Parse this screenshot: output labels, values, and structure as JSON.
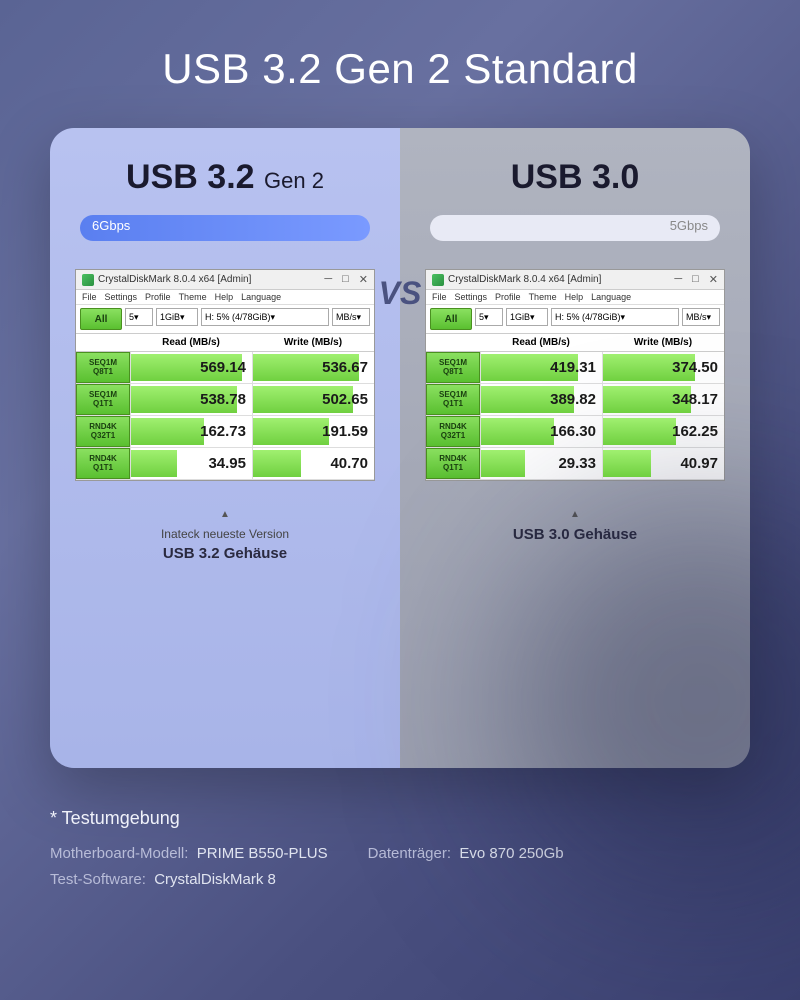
{
  "title": "USB 3.2 Gen 2 Standard",
  "vs_label": "VS",
  "colors": {
    "bg_grad_from": "#5a6494",
    "bg_grad_to": "#3a4070",
    "panel_left": "#a8b4e8",
    "panel_right": "#9ca0b0",
    "pill_left": "#5a7ff0",
    "pill_right": "#e8eaf5",
    "cdm_green": "#70d040"
  },
  "left": {
    "spec": "USB 3.2",
    "spec_sub": "Gen 2",
    "speed": "6Gbps",
    "caption_top": "Inateck neueste Version",
    "caption_main": "USB 3.2 Gehäuse",
    "cdm": {
      "title": "CrystalDiskMark 8.0.4 x64 [Admin]",
      "menu": [
        "File",
        "Settings",
        "Profile",
        "Theme",
        "Help",
        "Language"
      ],
      "all_label": "All",
      "sel_count": "5",
      "sel_size": "1GiB",
      "sel_drive": "H: 5% (4/78GiB)",
      "sel_unit": "MB/s",
      "head_read": "Read (MB/s)",
      "head_write": "Write (MB/s)",
      "rows": [
        {
          "l1": "SEQ1M",
          "l2": "Q8T1",
          "read": "569.14",
          "rbar": 92,
          "write": "536.67",
          "wbar": 88
        },
        {
          "l1": "SEQ1M",
          "l2": "Q1T1",
          "read": "538.78",
          "rbar": 88,
          "write": "502.65",
          "wbar": 83
        },
        {
          "l1": "RND4K",
          "l2": "Q32T1",
          "read": "162.73",
          "rbar": 60,
          "write": "191.59",
          "wbar": 63
        },
        {
          "l1": "RND4K",
          "l2": "Q1T1",
          "read": "34.95",
          "rbar": 38,
          "write": "40.70",
          "wbar": 40
        }
      ]
    }
  },
  "right": {
    "spec": "USB 3.0",
    "spec_sub": "",
    "speed": "5Gbps",
    "caption_top": "",
    "caption_main": "USB 3.0   Gehäuse",
    "cdm": {
      "title": "CrystalDiskMark 8.0.4 x64 [Admin]",
      "menu": [
        "File",
        "Settings",
        "Profile",
        "Theme",
        "Help",
        "Language"
      ],
      "all_label": "All",
      "sel_count": "5",
      "sel_size": "1GiB",
      "sel_drive": "H: 5% (4/78GiB)",
      "sel_unit": "MB/s",
      "head_read": "Read (MB/s)",
      "head_write": "Write (MB/s)",
      "rows": [
        {
          "l1": "SEQ1M",
          "l2": "Q8T1",
          "read": "419.31",
          "rbar": 80,
          "write": "374.50",
          "wbar": 76
        },
        {
          "l1": "SEQ1M",
          "l2": "Q1T1",
          "read": "389.82",
          "rbar": 77,
          "write": "348.17",
          "wbar": 73
        },
        {
          "l1": "RND4K",
          "l2": "Q32T1",
          "read": "166.30",
          "rbar": 60,
          "write": "162.25",
          "wbar": 60
        },
        {
          "l1": "RND4K",
          "l2": "Q1T1",
          "read": "29.33",
          "rbar": 36,
          "write": "40.97",
          "wbar": 40
        }
      ]
    }
  },
  "footer": {
    "heading": "* Testumgebung",
    "mb_label": "Motherboard-Modell:",
    "mb_value": "PRIME B550-PLUS",
    "disk_label": "Datenträger:",
    "disk_value": "Evo 870 250Gb",
    "sw_label": "Test-Software:",
    "sw_value": "CrystalDiskMark 8"
  }
}
